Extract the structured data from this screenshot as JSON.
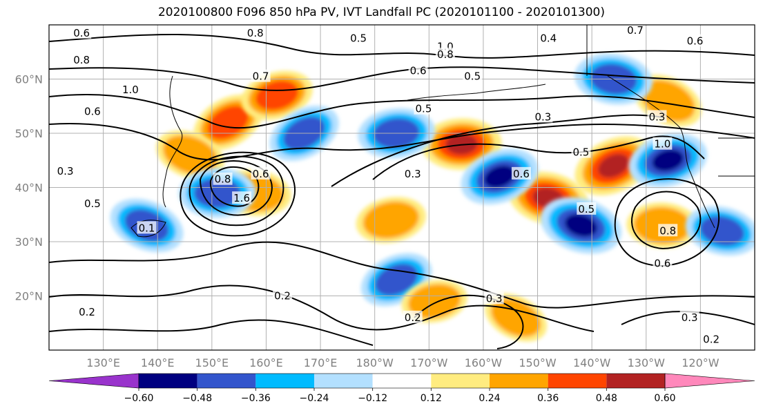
{
  "chart_data": {
    "type": "contour map",
    "title": "2020100800 F096 850 hPa PV, IVT Landfall PC (2020101100 - 2020101300)",
    "latitude_ticks": [
      "60°N",
      "50°N",
      "40°N",
      "30°N",
      "20°N"
    ],
    "latitude_values": [
      60,
      50,
      40,
      30,
      20
    ],
    "longitude_ticks": [
      "130°E",
      "140°E",
      "150°E",
      "160°E",
      "170°E",
      "180°W",
      "170°W",
      "160°W",
      "150°W",
      "140°W",
      "130°W",
      "120°W"
    ],
    "longitude_values": [
      130,
      140,
      150,
      160,
      170,
      180,
      190,
      200,
      210,
      220,
      230,
      240
    ],
    "extent": {
      "lon": [
        120,
        250
      ],
      "lat": [
        10,
        70
      ]
    },
    "grid": true,
    "colorbar": {
      "orientation": "horizontal",
      "extend": "both",
      "levels": [
        -0.72,
        -0.6,
        -0.48,
        -0.36,
        -0.24,
        -0.12,
        0.12,
        0.24,
        0.36,
        0.48,
        0.6,
        0.72
      ],
      "colors": [
        "#9933cc",
        "#000080",
        "#3355cc",
        "#00bbff",
        "#b3e0ff",
        "#ffffff",
        "#ffec80",
        "#ffa500",
        "#ff4500",
        "#b22222",
        "#ff88bb"
      ],
      "tick_labels": [
        "−0.60",
        "−0.48",
        "−0.36",
        "−0.24",
        "−0.12",
        "0.12",
        "0.24",
        "0.36",
        "0.48",
        "0.60"
      ],
      "tick_values": [
        -0.6,
        -0.48,
        -0.36,
        -0.24,
        -0.12,
        0.12,
        0.24,
        0.36,
        0.48,
        0.6
      ]
    },
    "shaded_regions": [
      {
        "lon": 153,
        "lat": 52,
        "value": 0.45
      },
      {
        "lon": 158,
        "lat": 39,
        "value": 0.4
      },
      {
        "lon": 162,
        "lat": 57,
        "value": 0.42
      },
      {
        "lon": 146,
        "lat": 46,
        "value": 0.38
      },
      {
        "lon": 196,
        "lat": 48,
        "value": 0.55
      },
      {
        "lon": 224,
        "lat": 44,
        "value": 0.58
      },
      {
        "lon": 212,
        "lat": 38,
        "value": 0.55
      },
      {
        "lon": 183,
        "lat": 34,
        "value": 0.38
      },
      {
        "lon": 234,
        "lat": 56,
        "value": 0.4
      },
      {
        "lon": 233,
        "lat": 33,
        "value": 0.4
      },
      {
        "lon": 203,
        "lat": 42,
        "value": -0.55
      },
      {
        "lon": 218,
        "lat": 33,
        "value": -0.6
      },
      {
        "lon": 184,
        "lat": 50,
        "value": -0.5
      },
      {
        "lon": 167,
        "lat": 50,
        "value": -0.45
      },
      {
        "lon": 224,
        "lat": 60,
        "value": -0.52
      },
      {
        "lon": 234,
        "lat": 45,
        "value": -0.55
      },
      {
        "lon": 138,
        "lat": 33,
        "value": -0.48
      },
      {
        "lon": 151,
        "lat": 39,
        "value": -0.5
      },
      {
        "lon": 184,
        "lat": 23,
        "value": -0.45
      },
      {
        "lon": 244,
        "lat": 32,
        "value": -0.45
      },
      {
        "lon": 191,
        "lat": 19,
        "value": 0.3
      },
      {
        "lon": 206,
        "lat": 16,
        "value": 0.3
      }
    ],
    "contour_labels": [
      {
        "text": "0.6",
        "lon": 126,
        "lat": 68.5
      },
      {
        "text": "0.8",
        "lon": 158,
        "lat": 68.5
      },
      {
        "text": "0.5",
        "lon": 177,
        "lat": 67.5
      },
      {
        "text": "1.0",
        "lon": 193,
        "lat": 66
      },
      {
        "text": "0.8",
        "lon": 193,
        "lat": 64.5
      },
      {
        "text": "0.4",
        "lon": 212,
        "lat": 67.5
      },
      {
        "text": "0.7",
        "lon": 228,
        "lat": 69
      },
      {
        "text": "0.6",
        "lon": 239,
        "lat": 67
      },
      {
        "text": "0.8",
        "lon": 126,
        "lat": 63.5
      },
      {
        "text": "0.6",
        "lon": 188,
        "lat": 61.5
      },
      {
        "text": "0.5",
        "lon": 198,
        "lat": 60.5
      },
      {
        "text": "1.0",
        "lon": 135,
        "lat": 58
      },
      {
        "text": "0.7",
        "lon": 159,
        "lat": 60.5
      },
      {
        "text": "0.5",
        "lon": 189,
        "lat": 54.5
      },
      {
        "text": "0.6",
        "lon": 128,
        "lat": 54
      },
      {
        "text": "0.3",
        "lon": 211,
        "lat": 53
      },
      {
        "text": "0.3",
        "lon": 232,
        "lat": 53
      },
      {
        "text": "0.6",
        "lon": 159,
        "lat": 42.5
      },
      {
        "text": "0.8",
        "lon": 152,
        "lat": 41.5
      },
      {
        "text": "0.3",
        "lon": 187,
        "lat": 42.5
      },
      {
        "text": "0.6",
        "lon": 207,
        "lat": 42.5
      },
      {
        "text": "0.5",
        "lon": 218,
        "lat": 46.5
      },
      {
        "text": "1.0",
        "lon": 233,
        "lat": 48
      },
      {
        "text": "0.3",
        "lon": 123,
        "lat": 43
      },
      {
        "text": "1.6",
        "lon": 155.5,
        "lat": 38
      },
      {
        "text": "0.5",
        "lon": 128,
        "lat": 37
      },
      {
        "text": "0.5",
        "lon": 219,
        "lat": 36
      },
      {
        "text": "0.8",
        "lon": 234,
        "lat": 32
      },
      {
        "text": "0.1",
        "lon": 138,
        "lat": 32.5
      },
      {
        "text": "0.2",
        "lon": 163,
        "lat": 20
      },
      {
        "text": "0.3",
        "lon": 202,
        "lat": 19.5
      },
      {
        "text": "0.2",
        "lon": 187,
        "lat": 16
      },
      {
        "text": "0.3",
        "lon": 238,
        "lat": 16
      },
      {
        "text": "0.2",
        "lon": 127,
        "lat": 17
      },
      {
        "text": "0.2",
        "lon": 242,
        "lat": 12
      },
      {
        "text": "0.6",
        "lon": 233,
        "lat": 26
      }
    ]
  }
}
